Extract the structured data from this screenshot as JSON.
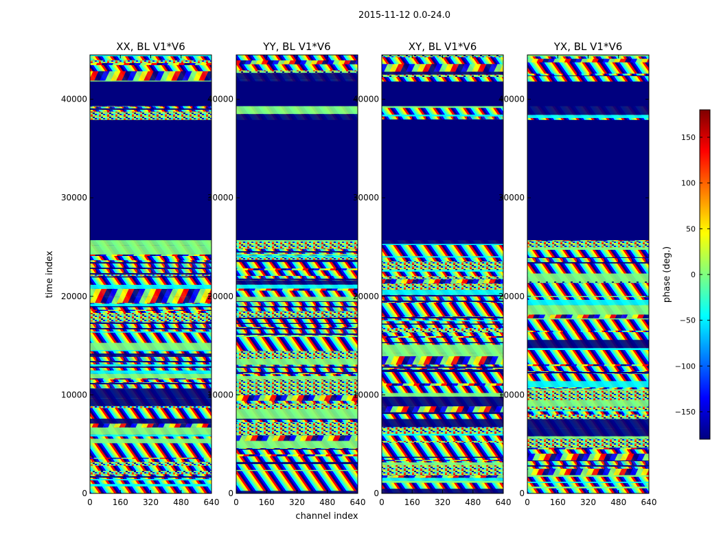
{
  "chart_data": {
    "type": "heatmap",
    "suptitle": "2015-11-12 0.0-24.0",
    "xlabel": "channel index",
    "ylabel": "time index",
    "xlim": [
      0,
      640
    ],
    "ylim": [
      0,
      44500
    ],
    "xticks": [
      0,
      160,
      320,
      480,
      640
    ],
    "yticks": [
      0,
      10000,
      20000,
      30000,
      40000
    ],
    "panels": [
      {
        "title": "XX, BL V1*V6"
      },
      {
        "title": "YY, BL V1*V6"
      },
      {
        "title": "XY, BL V1*V6"
      },
      {
        "title": "YX, BL V1*V6"
      }
    ],
    "empty_band_ranges": [
      [
        25700,
        37900
      ],
      [
        39300,
        41800
      ]
    ],
    "colorbar": {
      "label": "phase (deg.)",
      "range": [
        -180,
        180
      ],
      "ticks": [
        150,
        100,
        50,
        0,
        -50,
        -100,
        -150
      ],
      "tick_labels": [
        "150",
        "100",
        "50",
        "0",
        "−50",
        "−100",
        "−150"
      ],
      "colormap": "jet",
      "colors": [
        "#00007f",
        "#0000ff",
        "#007fff",
        "#00ffff",
        "#7fff7f",
        "#ffff00",
        "#ff7f00",
        "#ff0000",
        "#7f0000"
      ]
    }
  }
}
